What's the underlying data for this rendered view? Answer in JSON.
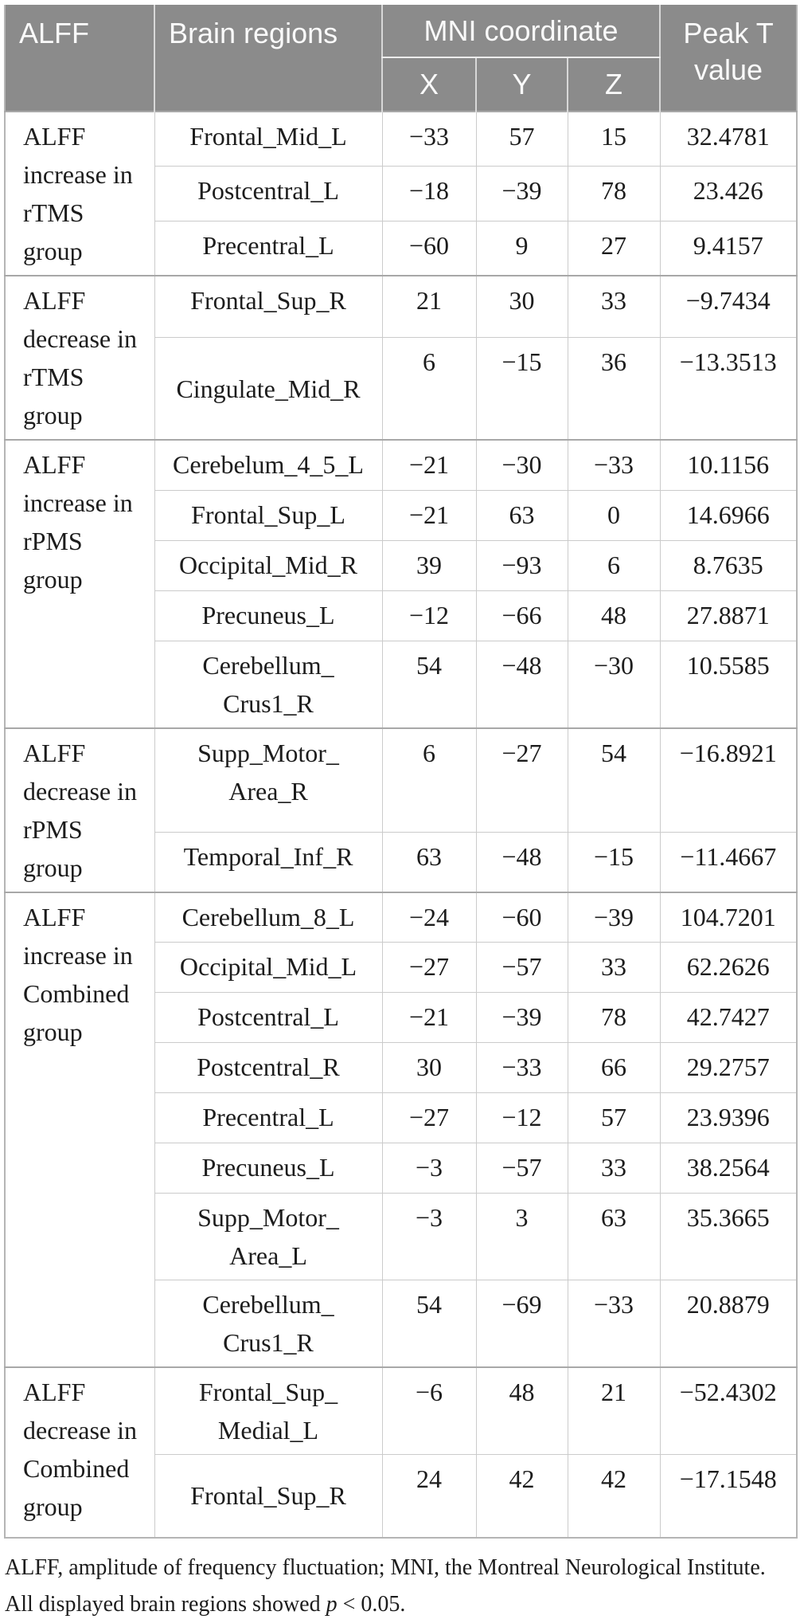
{
  "colors": {
    "header_bg": "#8b8b8b",
    "header_text": "#fafafa",
    "body_text": "#1c1c1c",
    "border_light": "#cbcbcb",
    "border_strong": "#a8a8a8",
    "border_outer": "#b5b5b5",
    "header_divider": "#d8d8d8",
    "mni_underline": "#ececec",
    "page_bg": "#ffffff"
  },
  "table": {
    "header": {
      "alff": "ALFF",
      "brain_regions": "Brain regions",
      "mni": "MNI coordinate",
      "x": "X",
      "y": "Y",
      "z": "Z",
      "peak_t": "Peak T value"
    },
    "groups": [
      {
        "label_lines": [
          "ALFF",
          "increase in",
          "rTMS group"
        ],
        "rows": [
          {
            "region": [
              "Frontal_Mid_L"
            ],
            "x": "−33",
            "y": "57",
            "z": "15",
            "t": "32.4781"
          },
          {
            "region": [
              "Postcentral_L"
            ],
            "x": "−18",
            "y": "−39",
            "z": "78",
            "t": "23.426"
          },
          {
            "region": [
              "Precentral_L"
            ],
            "x": "−60",
            "y": "9",
            "z": "27",
            "t": "9.4157"
          }
        ]
      },
      {
        "label_lines": [
          "ALFF",
          "decrease in",
          "rTMS group"
        ],
        "rows": [
          {
            "region": [
              "Frontal_Sup_R"
            ],
            "x": "21",
            "y": "30",
            "z": "33",
            "t": "−9.7434"
          },
          {
            "region": [
              "Cingulate_Mid_R"
            ],
            "h": 104,
            "label_mid": true,
            "x": "6",
            "y": "−15",
            "z": "36",
            "t": "−13.3513"
          }
        ]
      },
      {
        "label_lines": [
          "ALFF",
          "increase in",
          "rPMS group"
        ],
        "rows": [
          {
            "region": [
              "Cerebelum_4_5_L"
            ],
            "x": "−21",
            "y": "−30",
            "z": "−33",
            "t": "10.1156"
          },
          {
            "region": [
              "Frontal_Sup_L"
            ],
            "x": "−21",
            "y": "63",
            "z": "0",
            "t": "14.6966"
          },
          {
            "region": [
              "Occipital_Mid_R"
            ],
            "x": "39",
            "y": "−93",
            "z": "6",
            "t": "8.7635"
          },
          {
            "region": [
              "Precuneus_L"
            ],
            "x": "−12",
            "y": "−66",
            "z": "48",
            "t": "27.8871"
          },
          {
            "region": [
              "Cerebellum_",
              "Crus1_R"
            ],
            "x": "54",
            "y": "−48",
            "z": "−30",
            "t": "10.5585"
          }
        ]
      },
      {
        "label_lines": [
          "ALFF",
          "decrease in",
          "rPMS group"
        ],
        "rows": [
          {
            "region": [
              "Supp_Motor_",
              "Area_R"
            ],
            "x": "6",
            "y": "−27",
            "z": "54",
            "t": "−16.8921"
          },
          {
            "region": [
              "Temporal_Inf_R"
            ],
            "x": "63",
            "y": "−48",
            "z": "−15",
            "t": "−11.4667"
          }
        ]
      },
      {
        "label_lines": [
          "ALFF",
          "increase in",
          "Combined",
          "group"
        ],
        "rows": [
          {
            "region": [
              "Cerebellum_8_L"
            ],
            "x": "−24",
            "y": "−60",
            "z": "−39",
            "t": "104.7201"
          },
          {
            "region": [
              "Occipital_Mid_L"
            ],
            "x": "−27",
            "y": "−57",
            "z": "33",
            "t": "62.2626"
          },
          {
            "region": [
              "Postcentral_L"
            ],
            "x": "−21",
            "y": "−39",
            "z": "78",
            "t": "42.7427"
          },
          {
            "region": [
              "Postcentral_R"
            ],
            "x": "30",
            "y": "−33",
            "z": "66",
            "t": "29.2757"
          },
          {
            "region": [
              "Precentral_L"
            ],
            "x": "−27",
            "y": "−12",
            "z": "57",
            "t": "23.9396"
          },
          {
            "region": [
              "Precuneus_L"
            ],
            "x": "−3",
            "y": "−57",
            "z": "33",
            "t": "38.2564"
          },
          {
            "region": [
              "Supp_Motor_",
              "Area_L"
            ],
            "x": "−3",
            "y": "3",
            "z": "63",
            "t": "35.3665"
          },
          {
            "region": [
              "Cerebellum_",
              "Crus1_R"
            ],
            "x": "54",
            "y": "−69",
            "z": "−33",
            "t": "20.8879"
          }
        ]
      },
      {
        "label_lines": [
          "ALFF",
          "decrease in",
          "Combined",
          "group"
        ],
        "rows": [
          {
            "region": [
              "Frontal_Sup_",
              "Medial_L"
            ],
            "x": "−6",
            "y": "48",
            "z": "21",
            "t": "−52.4302"
          },
          {
            "region": [
              "Frontal_Sup_R"
            ],
            "h": 104,
            "label_mid": true,
            "x": "24",
            "y": "42",
            "z": "42",
            "t": "−17.1548"
          }
        ]
      }
    ],
    "footnote": {
      "before": "ALFF, amplitude of frequency fluctuation; MNI, the Montreal Neurological Institute. All displayed brain regions showed ",
      "italic": "p",
      "after": " < 0.05."
    }
  }
}
